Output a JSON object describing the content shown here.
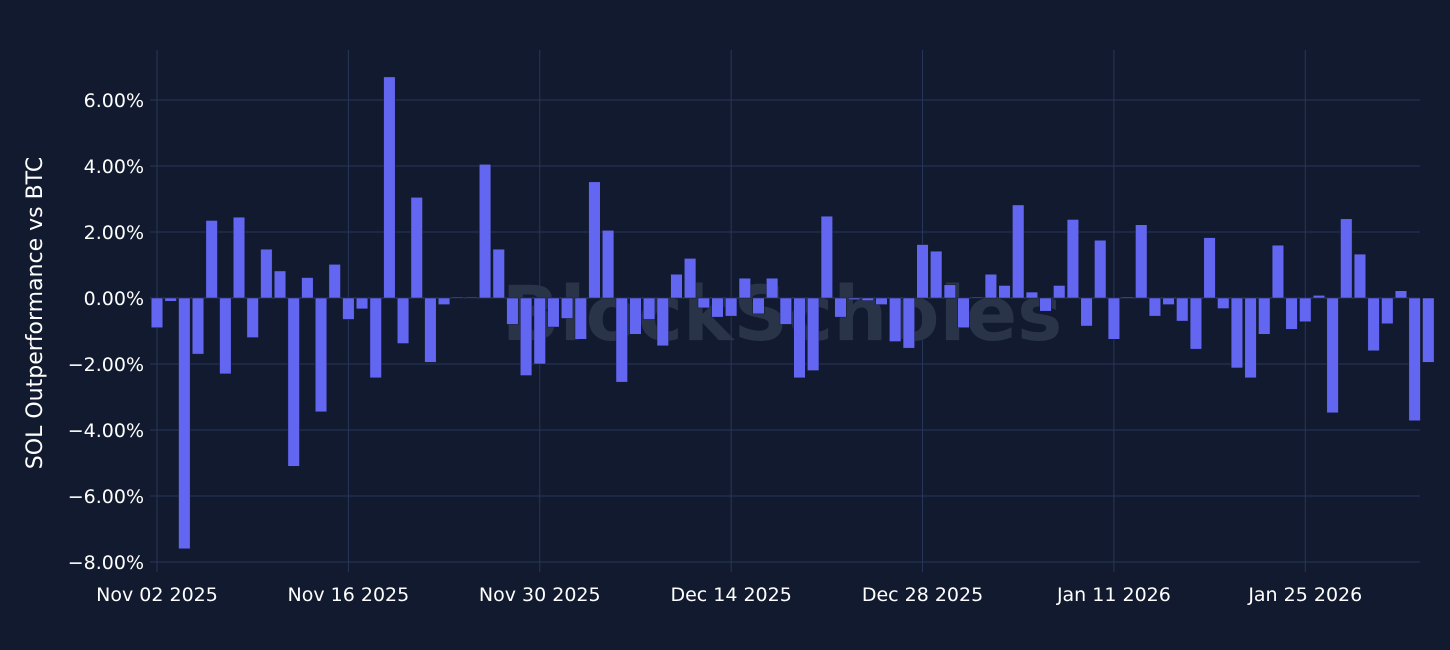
{
  "watermark": "BlockScholes",
  "chart_data": {
    "type": "bar",
    "ylabel": "SOL Outperformance vs BTC",
    "y_unit": "%",
    "ylim": [
      -8.2,
      7.5
    ],
    "y_ticks": [
      6,
      4,
      2,
      0,
      -2,
      -4,
      -6,
      -8
    ],
    "y_tick_labels": [
      "6.00%",
      "4.00%",
      "2.00%",
      "0.00%",
      "−2.00%",
      "−4.00%",
      "−6.00%",
      "−8.00%"
    ],
    "x_start": "2025-11-02",
    "x_ticks": [
      "2025-11-02",
      "2025-11-16",
      "2025-11-30",
      "2025-12-14",
      "2025-12-28",
      "2026-01-11",
      "2026-01-25"
    ],
    "x_tick_labels": [
      "Nov 02 2025",
      "Nov 16 2025",
      "Nov 30 2025",
      "Dec 14 2025",
      "Dec 28 2025",
      "Jan 11 2026",
      "Jan 25 2026"
    ],
    "grid": true,
    "bar_color": "#6366f1",
    "series": [
      {
        "values": [
          -0.9,
          -0.1,
          -7.6,
          -1.7,
          2.35,
          -2.3,
          2.45,
          -1.2,
          1.48,
          0.82,
          -5.1,
          0.62,
          -3.45,
          1.02,
          -0.65,
          -0.33,
          -2.42,
          6.7,
          -1.38,
          3.05,
          -1.95,
          -0.2,
          0.02,
          0.02,
          4.05,
          1.48,
          -0.8,
          -2.35,
          -2.0,
          -0.88,
          -0.62,
          -1.25,
          3.52,
          2.05,
          -2.55,
          -1.1,
          -0.65,
          -1.45,
          0.72,
          1.2,
          -0.3,
          -0.58,
          -0.55,
          0.6,
          -0.48,
          0.6,
          -0.8,
          -2.42,
          -2.2,
          2.48,
          -0.58,
          -0.05,
          -0.08,
          -0.2,
          -1.32,
          -1.52,
          1.62,
          1.42,
          0.4,
          -0.9,
          0.02,
          0.72,
          0.38,
          2.82,
          0.18,
          -0.4,
          0.38,
          2.38,
          -0.85,
          1.75,
          -1.25,
          0.03,
          2.22,
          -0.55,
          -0.2,
          -0.7,
          -1.55,
          1.83,
          -0.32,
          -2.12,
          -2.42,
          -1.1,
          1.6,
          -0.95,
          -0.72,
          0.08,
          -3.48,
          2.4,
          1.33,
          -1.6,
          -0.78,
          0.22,
          -3.72,
          -1.95
        ]
      }
    ]
  }
}
